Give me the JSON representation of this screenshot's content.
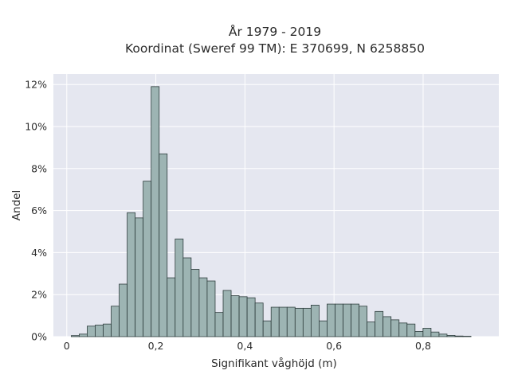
{
  "chart_data": {
    "type": "bar",
    "title_line1": "År 1979 - 2019",
    "title_line2": "Koordinat (Sweref 99 TM): E 370699, N 6258850",
    "xlabel": "Signifikant våghöjd (m)",
    "ylabel": "Andel",
    "xlim": [
      -0.03,
      0.97
    ],
    "ylim": [
      0,
      12.5
    ],
    "xticks": [
      {
        "value": 0,
        "label": "0"
      },
      {
        "value": 0.2,
        "label": "0,2"
      },
      {
        "value": 0.4,
        "label": "0,4"
      },
      {
        "value": 0.6,
        "label": "0,6"
      },
      {
        "value": 0.8,
        "label": "0,8"
      }
    ],
    "yticks": [
      {
        "value": 0,
        "label": "0%"
      },
      {
        "value": 2,
        "label": "2%"
      },
      {
        "value": 4,
        "label": "4%"
      },
      {
        "value": 6,
        "label": "6%"
      },
      {
        "value": 8,
        "label": "8%"
      },
      {
        "value": 10,
        "label": "10%"
      },
      {
        "value": 12,
        "label": "12%"
      }
    ],
    "bin_start": 0.01,
    "bin_width": 0.01795,
    "values": [
      0.05,
      0.12,
      0.5,
      0.55,
      0.6,
      1.45,
      2.5,
      5.9,
      5.65,
      7.4,
      11.9,
      8.7,
      2.8,
      4.65,
      3.75,
      3.2,
      2.8,
      2.65,
      1.15,
      2.2,
      1.95,
      1.9,
      1.85,
      1.6,
      0.75,
      1.4,
      1.4,
      1.4,
      1.35,
      1.35,
      1.5,
      0.75,
      1.55,
      1.55,
      1.55,
      1.55,
      1.45,
      0.7,
      1.2,
      0.95,
      0.8,
      0.65,
      0.6,
      0.25,
      0.4,
      0.22,
      0.12,
      0.06,
      0.03,
      0.02
    ],
    "grid": true,
    "colors": {
      "bar_fill": "#9db4b3",
      "bar_edge": "#2e3d3d",
      "plot_bg": "#e5e7f0"
    }
  }
}
